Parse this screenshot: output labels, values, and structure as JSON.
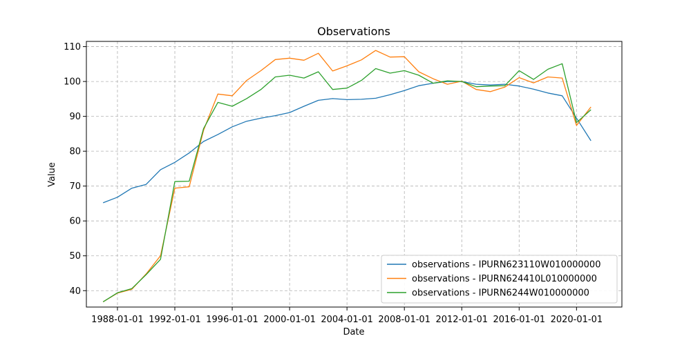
{
  "chart_data": {
    "type": "line",
    "title": "Observations",
    "xlabel": "Date",
    "ylabel": "Value",
    "x_ticks": [
      "1988-01-01",
      "1992-01-01",
      "1996-01-01",
      "2000-01-01",
      "2004-01-01",
      "2008-01-01",
      "2012-01-01",
      "2016-01-01",
      "2020-01-01"
    ],
    "y_ticks": [
      40,
      50,
      60,
      70,
      80,
      90,
      100,
      110
    ],
    "xlim": [
      "1985-11-01",
      "2023-03-01"
    ],
    "ylim": [
      35.3,
      111.5
    ],
    "grid": true,
    "legend_position": "lower-right",
    "x": [
      "1987-01-01",
      "1988-01-01",
      "1989-01-01",
      "1990-01-01",
      "1991-01-01",
      "1992-01-01",
      "1993-01-01",
      "1994-01-01",
      "1995-01-01",
      "1996-01-01",
      "1997-01-01",
      "1998-01-01",
      "1999-01-01",
      "2000-01-01",
      "2001-01-01",
      "2002-01-01",
      "2003-01-01",
      "2004-01-01",
      "2005-01-01",
      "2006-01-01",
      "2007-01-01",
      "2008-01-01",
      "2009-01-01",
      "2010-01-01",
      "2011-01-01",
      "2012-01-01",
      "2013-01-01",
      "2014-01-01",
      "2015-01-01",
      "2016-01-01",
      "2017-01-01",
      "2018-01-01",
      "2019-01-01",
      "2020-01-01",
      "2021-01-01"
    ],
    "series": [
      {
        "name": "observations - IPURN623110W010000000",
        "color": "#1f77b4",
        "values": [
          65.2,
          66.8,
          69.4,
          70.5,
          74.7,
          76.8,
          79.5,
          82.8,
          84.8,
          87.0,
          88.6,
          89.5,
          90.2,
          91.1,
          92.9,
          94.6,
          95.1,
          94.8,
          94.9,
          95.2,
          96.2,
          97.4,
          98.8,
          99.5,
          100.0,
          100.0,
          99.2,
          99.0,
          99.2,
          98.7,
          97.8,
          96.7,
          95.9,
          89.5,
          83.0
        ]
      },
      {
        "name": "observations - IPURN624410L010000000",
        "color": "#ff7f0e",
        "values": [
          36.8,
          39.3,
          40.4,
          44.8,
          50.0,
          69.4,
          69.8,
          86.0,
          96.4,
          95.9,
          100.3,
          103.1,
          106.3,
          106.7,
          106.1,
          108.1,
          103.0,
          104.5,
          106.2,
          108.9,
          107.0,
          107.1,
          102.8,
          100.8,
          99.2,
          100.1,
          97.7,
          97.1,
          98.4,
          101.1,
          99.6,
          101.3,
          101.0,
          87.4,
          92.7
        ]
      },
      {
        "name": "observations - IPURN6244W010000000",
        "color": "#2ca02c",
        "values": [
          36.8,
          39.4,
          40.6,
          44.6,
          49.0,
          71.3,
          71.4,
          86.5,
          94.0,
          92.9,
          95.1,
          97.7,
          101.3,
          101.8,
          101.0,
          102.8,
          97.7,
          98.1,
          100.3,
          103.7,
          102.4,
          103.1,
          101.8,
          99.5,
          100.2,
          100.0,
          98.5,
          98.7,
          98.8,
          103.1,
          100.6,
          103.5,
          105.1,
          88.2,
          91.9
        ]
      }
    ]
  }
}
